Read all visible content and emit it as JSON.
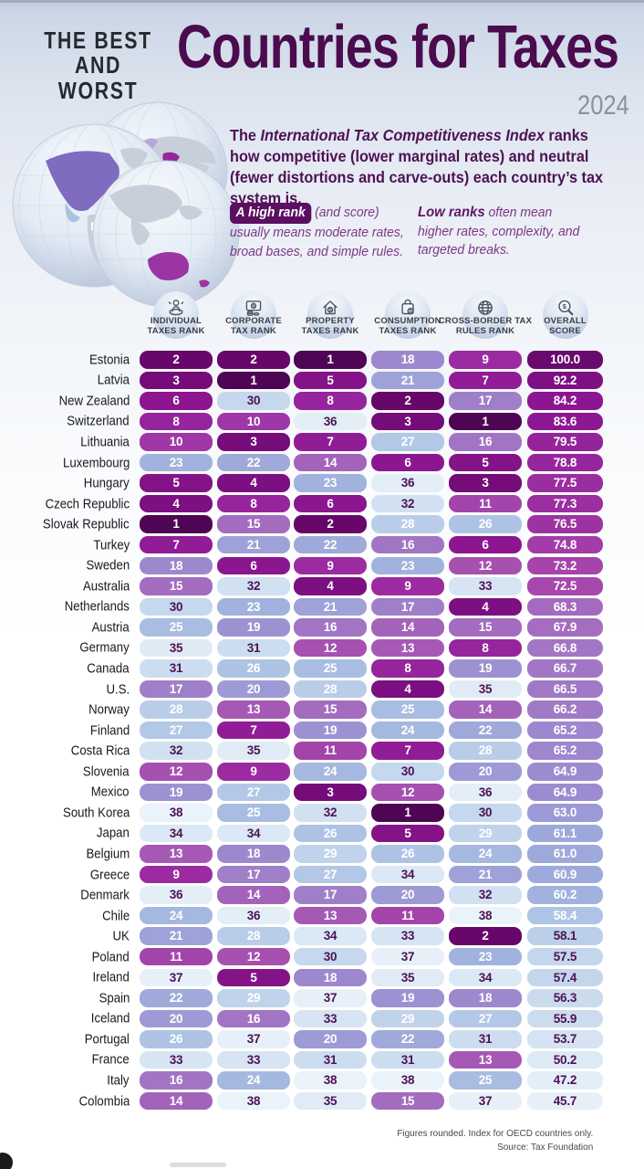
{
  "header": {
    "kicker_line1": "THE BEST",
    "kicker_line2": "AND WORST",
    "title": "Countries for Taxes",
    "year": "2024"
  },
  "intro": {
    "lead_prefix": "The ",
    "lead_bold": "International Tax Competitiveness Index",
    "lead_suffix": " ranks how competitive (lower marginal rates) and neutral (fewer distortions and carve-outs) each country’s tax system is.",
    "high_badge": "A high rank",
    "high_after_badge": " (and score)",
    "high_body": "usually means moderate rates, broad bases, and simple rules.",
    "low_bold": "Low ranks",
    "low_inline": " often mean",
    "low_body": "higher rates, complexity, and targeted breaks."
  },
  "columns": [
    {
      "label_line1": "INDIVIDUAL",
      "label_line2": "TAXES RANK",
      "icon": "individual-taxes-icon"
    },
    {
      "label_line1": "CORPORATE",
      "label_line2": "TAX RANK",
      "icon": "corporate-tax-icon"
    },
    {
      "label_line1": "PROPERTY",
      "label_line2": "TAXES RANK",
      "icon": "property-taxes-icon"
    },
    {
      "label_line1": "CONSUMPTION",
      "label_line2": "TAXES RANK",
      "icon": "consumption-taxes-icon"
    },
    {
      "label_line1": "CROSS-BORDER TAX",
      "label_line2": "RULES RANK",
      "icon": "cross-border-tax-icon"
    },
    {
      "label_line1": "OVERALL",
      "label_line2": "SCORE",
      "icon": "overall-score-icon"
    }
  ],
  "footer": {
    "note": "Figures rounded. Index for OECD countries only.",
    "source": "Source: Tax Foundation"
  },
  "colors": {
    "title": "#4a0c4e",
    "kicker": "#26292e",
    "year": "#8c929c",
    "intro_text": "#4e1253",
    "legend_italic": "#7b3886",
    "badge_bg": "#5a0f60",
    "badge_text": "#ffffff",
    "header_label": "#3a4047",
    "country_label": "#17191d",
    "cell_text_light": "#ffffff",
    "cell_text_dark": "#4c1254",
    "footer_text": "#44484e",
    "light_text_max_rank": 29,
    "light_text_min_score": 58.3,
    "rank_stops": [
      [
        1,
        "#4e0554"
      ],
      [
        2,
        "#660769"
      ],
      [
        3,
        "#750c79"
      ],
      [
        6,
        "#8b1690"
      ],
      [
        9,
        "#9c2ba2"
      ],
      [
        12,
        "#a650b0"
      ],
      [
        16,
        "#a275c4"
      ],
      [
        19,
        "#9c92d2"
      ],
      [
        23,
        "#a0b2dd"
      ],
      [
        27,
        "#b2c8e6"
      ],
      [
        31,
        "#cdddf0"
      ],
      [
        35,
        "#e0ebf6"
      ],
      [
        38,
        "#eaf3fa"
      ]
    ],
    "score_stops": [
      [
        45.7,
        "#e7f0f9"
      ],
      [
        47,
        "#e3eef7"
      ],
      [
        50,
        "#dde9f5"
      ],
      [
        53.7,
        "#d5e3f2"
      ],
      [
        56,
        "#ccdcee"
      ],
      [
        57.5,
        "#c3d6ec"
      ],
      [
        58.1,
        "#bccfe9"
      ],
      [
        58.4,
        "#aec4e6"
      ],
      [
        60,
        "#a3b4e0"
      ],
      [
        61,
        "#9da9da"
      ],
      [
        63,
        "#9b9ad6"
      ],
      [
        65,
        "#9d8ad0"
      ],
      [
        66,
        "#a07cc8"
      ],
      [
        68,
        "#a46cc0"
      ],
      [
        72.5,
        "#a748ae"
      ],
      [
        75,
        "#a23ba8"
      ],
      [
        79,
        "#95259b"
      ],
      [
        84,
        "#8b1691"
      ],
      [
        92,
        "#7d1082"
      ],
      [
        100,
        "#690b6e"
      ]
    ]
  },
  "chart_data": {
    "type": "table",
    "title": "The Best and Worst Countries for Taxes 2024",
    "columns": [
      "Individual Taxes Rank",
      "Corporate Tax Rank",
      "Property Taxes Rank",
      "Consumption Taxes Rank",
      "Cross-Border Tax Rules Rank",
      "Overall Score"
    ],
    "rows": [
      {
        "country": "Estonia",
        "ranks": [
          2,
          2,
          1,
          18,
          9
        ],
        "score": 100.0
      },
      {
        "country": "Latvia",
        "ranks": [
          3,
          1,
          5,
          21,
          7
        ],
        "score": 92.2
      },
      {
        "country": "New Zealand",
        "ranks": [
          6,
          30,
          8,
          2,
          17
        ],
        "score": 84.2
      },
      {
        "country": "Switzerland",
        "ranks": [
          8,
          10,
          36,
          3,
          1
        ],
        "score": 83.6
      },
      {
        "country": "Lithuania",
        "ranks": [
          10,
          3,
          7,
          27,
          16
        ],
        "score": 79.5
      },
      {
        "country": "Luxembourg",
        "ranks": [
          23,
          22,
          14,
          6,
          5
        ],
        "score": 78.8
      },
      {
        "country": "Hungary",
        "ranks": [
          5,
          4,
          23,
          36,
          3
        ],
        "score": 77.5
      },
      {
        "country": "Czech Republic",
        "ranks": [
          4,
          8,
          6,
          32,
          11
        ],
        "score": 77.3
      },
      {
        "country": "Slovak Republic",
        "ranks": [
          1,
          15,
          2,
          28,
          26
        ],
        "score": 76.5
      },
      {
        "country": "Turkey",
        "ranks": [
          7,
          21,
          22,
          16,
          6
        ],
        "score": 74.8
      },
      {
        "country": "Sweden",
        "ranks": [
          18,
          6,
          9,
          23,
          12
        ],
        "score": 73.2
      },
      {
        "country": "Australia",
        "ranks": [
          15,
          32,
          4,
          9,
          33
        ],
        "score": 72.5
      },
      {
        "country": "Netherlands",
        "ranks": [
          30,
          23,
          21,
          17,
          4
        ],
        "score": 68.3
      },
      {
        "country": "Austria",
        "ranks": [
          25,
          19,
          16,
          14,
          15
        ],
        "score": 67.9
      },
      {
        "country": "Germany",
        "ranks": [
          35,
          31,
          12,
          13,
          8
        ],
        "score": 66.8
      },
      {
        "country": "Canada",
        "ranks": [
          31,
          26,
          25,
          8,
          19
        ],
        "score": 66.7
      },
      {
        "country": "U.S.",
        "ranks": [
          17,
          20,
          28,
          4,
          35
        ],
        "score": 66.5
      },
      {
        "country": "Norway",
        "ranks": [
          28,
          13,
          15,
          25,
          14
        ],
        "score": 66.2
      },
      {
        "country": "Finland",
        "ranks": [
          27,
          7,
          19,
          24,
          22
        ],
        "score": 65.2
      },
      {
        "country": "Costa Rica",
        "ranks": [
          32,
          35,
          11,
          7,
          28
        ],
        "score": 65.2
      },
      {
        "country": "Slovenia",
        "ranks": [
          12,
          9,
          24,
          30,
          20
        ],
        "score": 64.9
      },
      {
        "country": "Mexico",
        "ranks": [
          19,
          27,
          3,
          12,
          36
        ],
        "score": 64.9
      },
      {
        "country": "South Korea",
        "ranks": [
          38,
          25,
          32,
          1,
          30
        ],
        "score": 63.0
      },
      {
        "country": "Japan",
        "ranks": [
          34,
          34,
          26,
          5,
          29
        ],
        "score": 61.1
      },
      {
        "country": "Belgium",
        "ranks": [
          13,
          18,
          29,
          26,
          24
        ],
        "score": 61.0
      },
      {
        "country": "Greece",
        "ranks": [
          9,
          17,
          27,
          34,
          21
        ],
        "score": 60.9
      },
      {
        "country": "Denmark",
        "ranks": [
          36,
          14,
          17,
          20,
          32
        ],
        "score": 60.2
      },
      {
        "country": "Chile",
        "ranks": [
          24,
          36,
          13,
          11,
          38
        ],
        "score": 58.4
      },
      {
        "country": "UK",
        "ranks": [
          21,
          28,
          34,
          33,
          2
        ],
        "score": 58.1
      },
      {
        "country": "Poland",
        "ranks": [
          11,
          12,
          30,
          37,
          23
        ],
        "score": 57.5
      },
      {
        "country": "Ireland",
        "ranks": [
          37,
          5,
          18,
          35,
          34
        ],
        "score": 57.4
      },
      {
        "country": "Spain",
        "ranks": [
          22,
          29,
          37,
          19,
          18
        ],
        "score": 56.3
      },
      {
        "country": "Iceland",
        "ranks": [
          20,
          16,
          33,
          29,
          27
        ],
        "score": 55.9
      },
      {
        "country": "Portugal",
        "ranks": [
          26,
          37,
          20,
          22,
          31
        ],
        "score": 53.7
      },
      {
        "country": "France",
        "ranks": [
          33,
          33,
          31,
          31,
          13
        ],
        "score": 50.2
      },
      {
        "country": "Italy",
        "ranks": [
          16,
          24,
          38,
          38,
          25
        ],
        "score": 47.2
      },
      {
        "country": "Colombia",
        "ranks": [
          14,
          38,
          35,
          15,
          37
        ],
        "score": 45.7
      }
    ]
  }
}
